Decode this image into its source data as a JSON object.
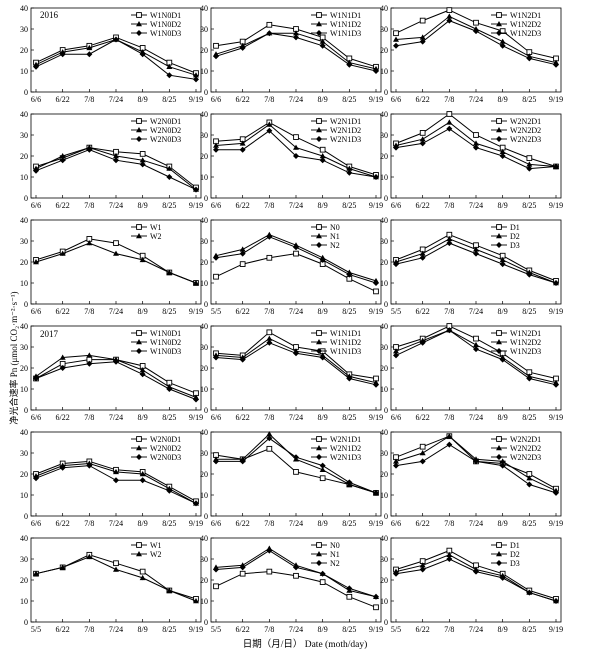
{
  "y_axis_label": "净光合速率 Pn (μmol CO₂·m⁻²·s⁻¹)",
  "x_axis_label": "日期（月/日） Date (moth/day)",
  "year_labels": [
    "2016",
    "2017"
  ],
  "colors": {
    "line": "#000000",
    "background": "#ffffff"
  },
  "chart_data": [
    {
      "type": "line",
      "year": "2016",
      "ylim": [
        0,
        40
      ],
      "categories": [
        "6/6",
        "6/22",
        "7/8",
        "7/24",
        "8/9",
        "8/25",
        "9/19"
      ],
      "series": [
        {
          "name": "W1N0D1",
          "marker": "open-square",
          "values": [
            14,
            20,
            22,
            26,
            21,
            14,
            9
          ]
        },
        {
          "name": "W1N0D2",
          "marker": "triangle",
          "values": [
            13,
            19,
            21,
            25,
            19,
            12,
            8
          ]
        },
        {
          "name": "W1N0D3",
          "marker": "diamond",
          "values": [
            12,
            18,
            18,
            25,
            18,
            8,
            6
          ]
        }
      ]
    },
    {
      "type": "line",
      "year": "2016",
      "ylim": [
        0,
        40
      ],
      "categories": [
        "6/6",
        "6/22",
        "7/8",
        "7/24",
        "8/9",
        "8/25",
        "9/19"
      ],
      "series": [
        {
          "name": "W1N1D1",
          "marker": "open-square",
          "values": [
            22,
            24,
            32,
            30,
            26,
            16,
            12
          ]
        },
        {
          "name": "W1N1D2",
          "marker": "triangle",
          "values": [
            18,
            22,
            28,
            28,
            24,
            14,
            11
          ]
        },
        {
          "name": "W1N1D3",
          "marker": "diamond",
          "values": [
            17,
            21,
            28,
            26,
            22,
            13,
            10
          ]
        }
      ]
    },
    {
      "type": "line",
      "year": "2016",
      "ylim": [
        0,
        40
      ],
      "categories": [
        "6/6",
        "6/22",
        "7/8",
        "7/24",
        "8/9",
        "8/25",
        "9/19"
      ],
      "series": [
        {
          "name": "W1N2D1",
          "marker": "open-square",
          "values": [
            28,
            34,
            39,
            33,
            29,
            19,
            16
          ]
        },
        {
          "name": "W1N2D2",
          "marker": "triangle",
          "values": [
            25,
            26,
            36,
            30,
            24,
            17,
            14
          ]
        },
        {
          "name": "W1N2D3",
          "marker": "diamond",
          "values": [
            22,
            24,
            34,
            29,
            22,
            16,
            13
          ]
        }
      ]
    },
    {
      "type": "line",
      "year": "2016",
      "ylim": [
        0,
        40
      ],
      "categories": [
        "6/6",
        "6/22",
        "7/8",
        "7/24",
        "8/9",
        "8/25",
        "9/19"
      ],
      "series": [
        {
          "name": "W2N0D1",
          "marker": "open-square",
          "values": [
            15,
            19,
            24,
            22,
            21,
            15,
            5
          ]
        },
        {
          "name": "W2N0D2",
          "marker": "triangle",
          "values": [
            14,
            20,
            24,
            20,
            18,
            14,
            4
          ]
        },
        {
          "name": "W2N0D3",
          "marker": "diamond",
          "values": [
            13,
            18,
            23,
            18,
            16,
            10,
            4
          ]
        }
      ]
    },
    {
      "type": "line",
      "year": "2016",
      "ylim": [
        0,
        40
      ],
      "categories": [
        "6/6",
        "6/22",
        "7/8",
        "7/24",
        "8/9",
        "8/25",
        "9/19"
      ],
      "series": [
        {
          "name": "W2N1D1",
          "marker": "open-square",
          "values": [
            27,
            28,
            36,
            29,
            23,
            15,
            11
          ]
        },
        {
          "name": "W2N1D2",
          "marker": "triangle",
          "values": [
            25,
            26,
            35,
            24,
            20,
            14,
            10
          ]
        },
        {
          "name": "W2N1D3",
          "marker": "diamond",
          "values": [
            23,
            23,
            32,
            20,
            18,
            12,
            10
          ]
        }
      ]
    },
    {
      "type": "line",
      "year": "2016",
      "ylim": [
        0,
        40
      ],
      "categories": [
        "6/6",
        "6/22",
        "7/8",
        "7/24",
        "8/9",
        "8/25",
        "9/19"
      ],
      "series": [
        {
          "name": "W2N2D1",
          "marker": "open-square",
          "values": [
            26,
            31,
            40,
            30,
            24,
            19,
            15
          ]
        },
        {
          "name": "W2N2D2",
          "marker": "triangle",
          "values": [
            25,
            28,
            36,
            26,
            22,
            16,
            15
          ]
        },
        {
          "name": "W2N2D3",
          "marker": "diamond",
          "values": [
            24,
            26,
            33,
            24,
            20,
            14,
            15
          ]
        }
      ]
    },
    {
      "type": "line",
      "year": "2016",
      "ylim": [
        0,
        40
      ],
      "categories": [
        "6/6",
        "6/22",
        "7/8",
        "7/24",
        "8/9",
        "8/25",
        "9/19"
      ],
      "series": [
        {
          "name": "W1",
          "marker": "open-square",
          "values": [
            21,
            25,
            31,
            29,
            23,
            15,
            10
          ]
        },
        {
          "name": "W2",
          "marker": "triangle",
          "values": [
            20,
            24,
            29,
            24,
            21,
            15,
            10
          ]
        }
      ]
    },
    {
      "type": "line",
      "year": "2016",
      "ylim": [
        0,
        40
      ],
      "categories": [
        "5/5",
        "6/22",
        "7/8",
        "7/24",
        "8/9",
        "8/25",
        "9/19"
      ],
      "series": [
        {
          "name": "N0",
          "marker": "open-square",
          "values": [
            13,
            19,
            22,
            24,
            19,
            12,
            6
          ]
        },
        {
          "name": "N1",
          "marker": "triangle",
          "values": [
            23,
            26,
            33,
            28,
            22,
            15,
            11
          ]
        },
        {
          "name": "N2",
          "marker": "diamond",
          "values": [
            22,
            24,
            32,
            27,
            21,
            14,
            10
          ]
        }
      ]
    },
    {
      "type": "line",
      "year": "2016",
      "ylim": [
        0,
        40
      ],
      "categories": [
        "5/5",
        "6/22",
        "7/8",
        "7/24",
        "8/9",
        "8/25",
        "9/19"
      ],
      "series": [
        {
          "name": "D1",
          "marker": "open-square",
          "values": [
            21,
            26,
            33,
            28,
            23,
            16,
            11
          ]
        },
        {
          "name": "D2",
          "marker": "triangle",
          "values": [
            20,
            24,
            31,
            26,
            21,
            15,
            10
          ]
        },
        {
          "name": "D3",
          "marker": "diamond",
          "values": [
            19,
            22,
            29,
            24,
            19,
            14,
            10
          ]
        }
      ]
    },
    {
      "type": "line",
      "year": "2017",
      "ylim": [
        0,
        40
      ],
      "categories": [
        "6/6",
        "6/22",
        "7/8",
        "7/24",
        "8/9",
        "8/25",
        "9/19"
      ],
      "series": [
        {
          "name": "W1N0D1",
          "marker": "open-square",
          "values": [
            15,
            22,
            24,
            24,
            21,
            13,
            8
          ]
        },
        {
          "name": "W1N0D2",
          "marker": "triangle",
          "values": [
            16,
            25,
            26,
            24,
            19,
            11,
            6
          ]
        },
        {
          "name": "W1N0D3",
          "marker": "diamond",
          "values": [
            15,
            20,
            22,
            23,
            17,
            10,
            5
          ]
        }
      ]
    },
    {
      "type": "line",
      "year": "2017",
      "ylim": [
        0,
        40
      ],
      "categories": [
        "6/6",
        "6/22",
        "7/8",
        "7/24",
        "8/9",
        "8/25",
        "9/19"
      ],
      "series": [
        {
          "name": "W1N1D1",
          "marker": "open-square",
          "values": [
            27,
            26,
            37,
            30,
            28,
            17,
            15
          ]
        },
        {
          "name": "W1N1D2",
          "marker": "triangle",
          "values": [
            26,
            25,
            34,
            28,
            26,
            16,
            13
          ]
        },
        {
          "name": "W1N1D3",
          "marker": "diamond",
          "values": [
            25,
            24,
            32,
            27,
            25,
            15,
            12
          ]
        }
      ]
    },
    {
      "type": "line",
      "year": "2017",
      "ylim": [
        0,
        40
      ],
      "categories": [
        "6/6",
        "6/22",
        "7/8",
        "7/24",
        "8/9",
        "8/25",
        "9/19"
      ],
      "series": [
        {
          "name": "W1N2D1",
          "marker": "open-square",
          "values": [
            30,
            34,
            40,
            34,
            27,
            18,
            15
          ]
        },
        {
          "name": "W1N2D2",
          "marker": "triangle",
          "values": [
            28,
            33,
            38,
            31,
            25,
            16,
            13
          ]
        },
        {
          "name": "W1N2D3",
          "marker": "diamond",
          "values": [
            26,
            32,
            38,
            29,
            24,
            15,
            12
          ]
        }
      ]
    },
    {
      "type": "line",
      "year": "2017",
      "ylim": [
        0,
        40
      ],
      "categories": [
        "6/6",
        "6/22",
        "7/8",
        "7/24",
        "8/9",
        "8/25",
        "9/19"
      ],
      "series": [
        {
          "name": "W2N0D1",
          "marker": "open-square",
          "values": [
            20,
            25,
            26,
            22,
            21,
            14,
            7
          ]
        },
        {
          "name": "W2N0D2",
          "marker": "triangle",
          "values": [
            19,
            24,
            25,
            21,
            20,
            13,
            6
          ]
        },
        {
          "name": "W2N0D3",
          "marker": "diamond",
          "values": [
            18,
            23,
            24,
            17,
            17,
            12,
            6
          ]
        }
      ]
    },
    {
      "type": "line",
      "year": "2017",
      "ylim": [
        0,
        40
      ],
      "categories": [
        "6/6",
        "6/22",
        "7/8",
        "7/24",
        "8/9",
        "8/25",
        "9/19"
      ],
      "series": [
        {
          "name": "W2N1D1",
          "marker": "open-square",
          "values": [
            29,
            27,
            32,
            21,
            18,
            15,
            11
          ]
        },
        {
          "name": "W2N1D2",
          "marker": "triangle",
          "values": [
            27,
            27,
            39,
            27,
            22,
            15,
            11
          ]
        },
        {
          "name": "W2N1D3",
          "marker": "diamond",
          "values": [
            26,
            26,
            37,
            28,
            24,
            16,
            11
          ]
        }
      ]
    },
    {
      "type": "line",
      "year": "2017",
      "ylim": [
        0,
        40
      ],
      "categories": [
        "6/6",
        "6/22",
        "7/8",
        "7/24",
        "8/9",
        "8/25",
        "9/19"
      ],
      "series": [
        {
          "name": "W2N2D1",
          "marker": "open-square",
          "values": [
            28,
            33,
            38,
            26,
            25,
            20,
            13
          ]
        },
        {
          "name": "W2N2D2",
          "marker": "triangle",
          "values": [
            26,
            30,
            38,
            27,
            26,
            18,
            12
          ]
        },
        {
          "name": "W2N2D3",
          "marker": "diamond",
          "values": [
            24,
            26,
            34,
            26,
            24,
            15,
            11
          ]
        }
      ]
    },
    {
      "type": "line",
      "year": "2017",
      "ylim": [
        0,
        40
      ],
      "categories": [
        "5/5",
        "6/22",
        "7/8",
        "7/24",
        "8/9",
        "8/25",
        "9/19"
      ],
      "series": [
        {
          "name": "W1",
          "marker": "open-square",
          "values": [
            23,
            26,
            32,
            28,
            24,
            15,
            11
          ]
        },
        {
          "name": "W2",
          "marker": "triangle",
          "values": [
            23,
            26,
            31,
            25,
            21,
            15,
            10
          ]
        }
      ]
    },
    {
      "type": "line",
      "year": "2017",
      "ylim": [
        0,
        40
      ],
      "categories": [
        "5/5",
        "6/22",
        "7/8",
        "7/24",
        "8/9",
        "8/25",
        "9/19"
      ],
      "series": [
        {
          "name": "N0",
          "marker": "open-square",
          "values": [
            17,
            23,
            24,
            22,
            19,
            12,
            7
          ]
        },
        {
          "name": "N1",
          "marker": "triangle",
          "values": [
            26,
            27,
            35,
            27,
            23,
            15,
            12
          ]
        },
        {
          "name": "N2",
          "marker": "diamond",
          "values": [
            25,
            26,
            34,
            26,
            23,
            16,
            12
          ]
        }
      ]
    },
    {
      "type": "line",
      "year": "2017",
      "ylim": [
        0,
        40
      ],
      "categories": [
        "5/5",
        "6/22",
        "7/8",
        "7/24",
        "8/9",
        "8/25",
        "9/19"
      ],
      "series": [
        {
          "name": "D1",
          "marker": "open-square",
          "values": [
            25,
            29,
            34,
            27,
            23,
            15,
            11
          ]
        },
        {
          "name": "D2",
          "marker": "triangle",
          "values": [
            24,
            27,
            32,
            25,
            22,
            14,
            10
          ]
        },
        {
          "name": "D3",
          "marker": "diamond",
          "values": [
            23,
            25,
            30,
            24,
            21,
            14,
            10
          ]
        }
      ]
    }
  ]
}
